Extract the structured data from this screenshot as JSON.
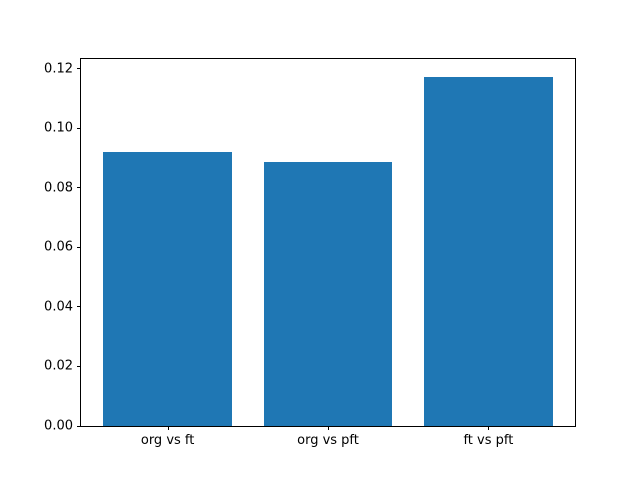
{
  "figure": {
    "background_color": "#ffffff",
    "spine_color": "#000000",
    "tick_label_color": "#000000"
  },
  "chart_data": {
    "type": "bar",
    "title": "",
    "xlabel": "",
    "ylabel": "",
    "categories": [
      "org vs ft",
      "org vs pft",
      "ft vs pft"
    ],
    "values": [
      0.092,
      0.0887,
      0.1173
    ],
    "x_positions": [
      0,
      1,
      2
    ],
    "bar_width": 0.8,
    "bar_color": "#1f77b4",
    "xlim": [
      -0.54,
      2.54
    ],
    "ylim": [
      0,
      0.1232
    ],
    "ytick_values": [
      0.0,
      0.02,
      0.04,
      0.06,
      0.08,
      0.1,
      0.12
    ],
    "ytick_labels": [
      "0.00",
      "0.02",
      "0.04",
      "0.06",
      "0.08",
      "0.10",
      "0.12"
    ],
    "grid": false,
    "legend": null
  }
}
